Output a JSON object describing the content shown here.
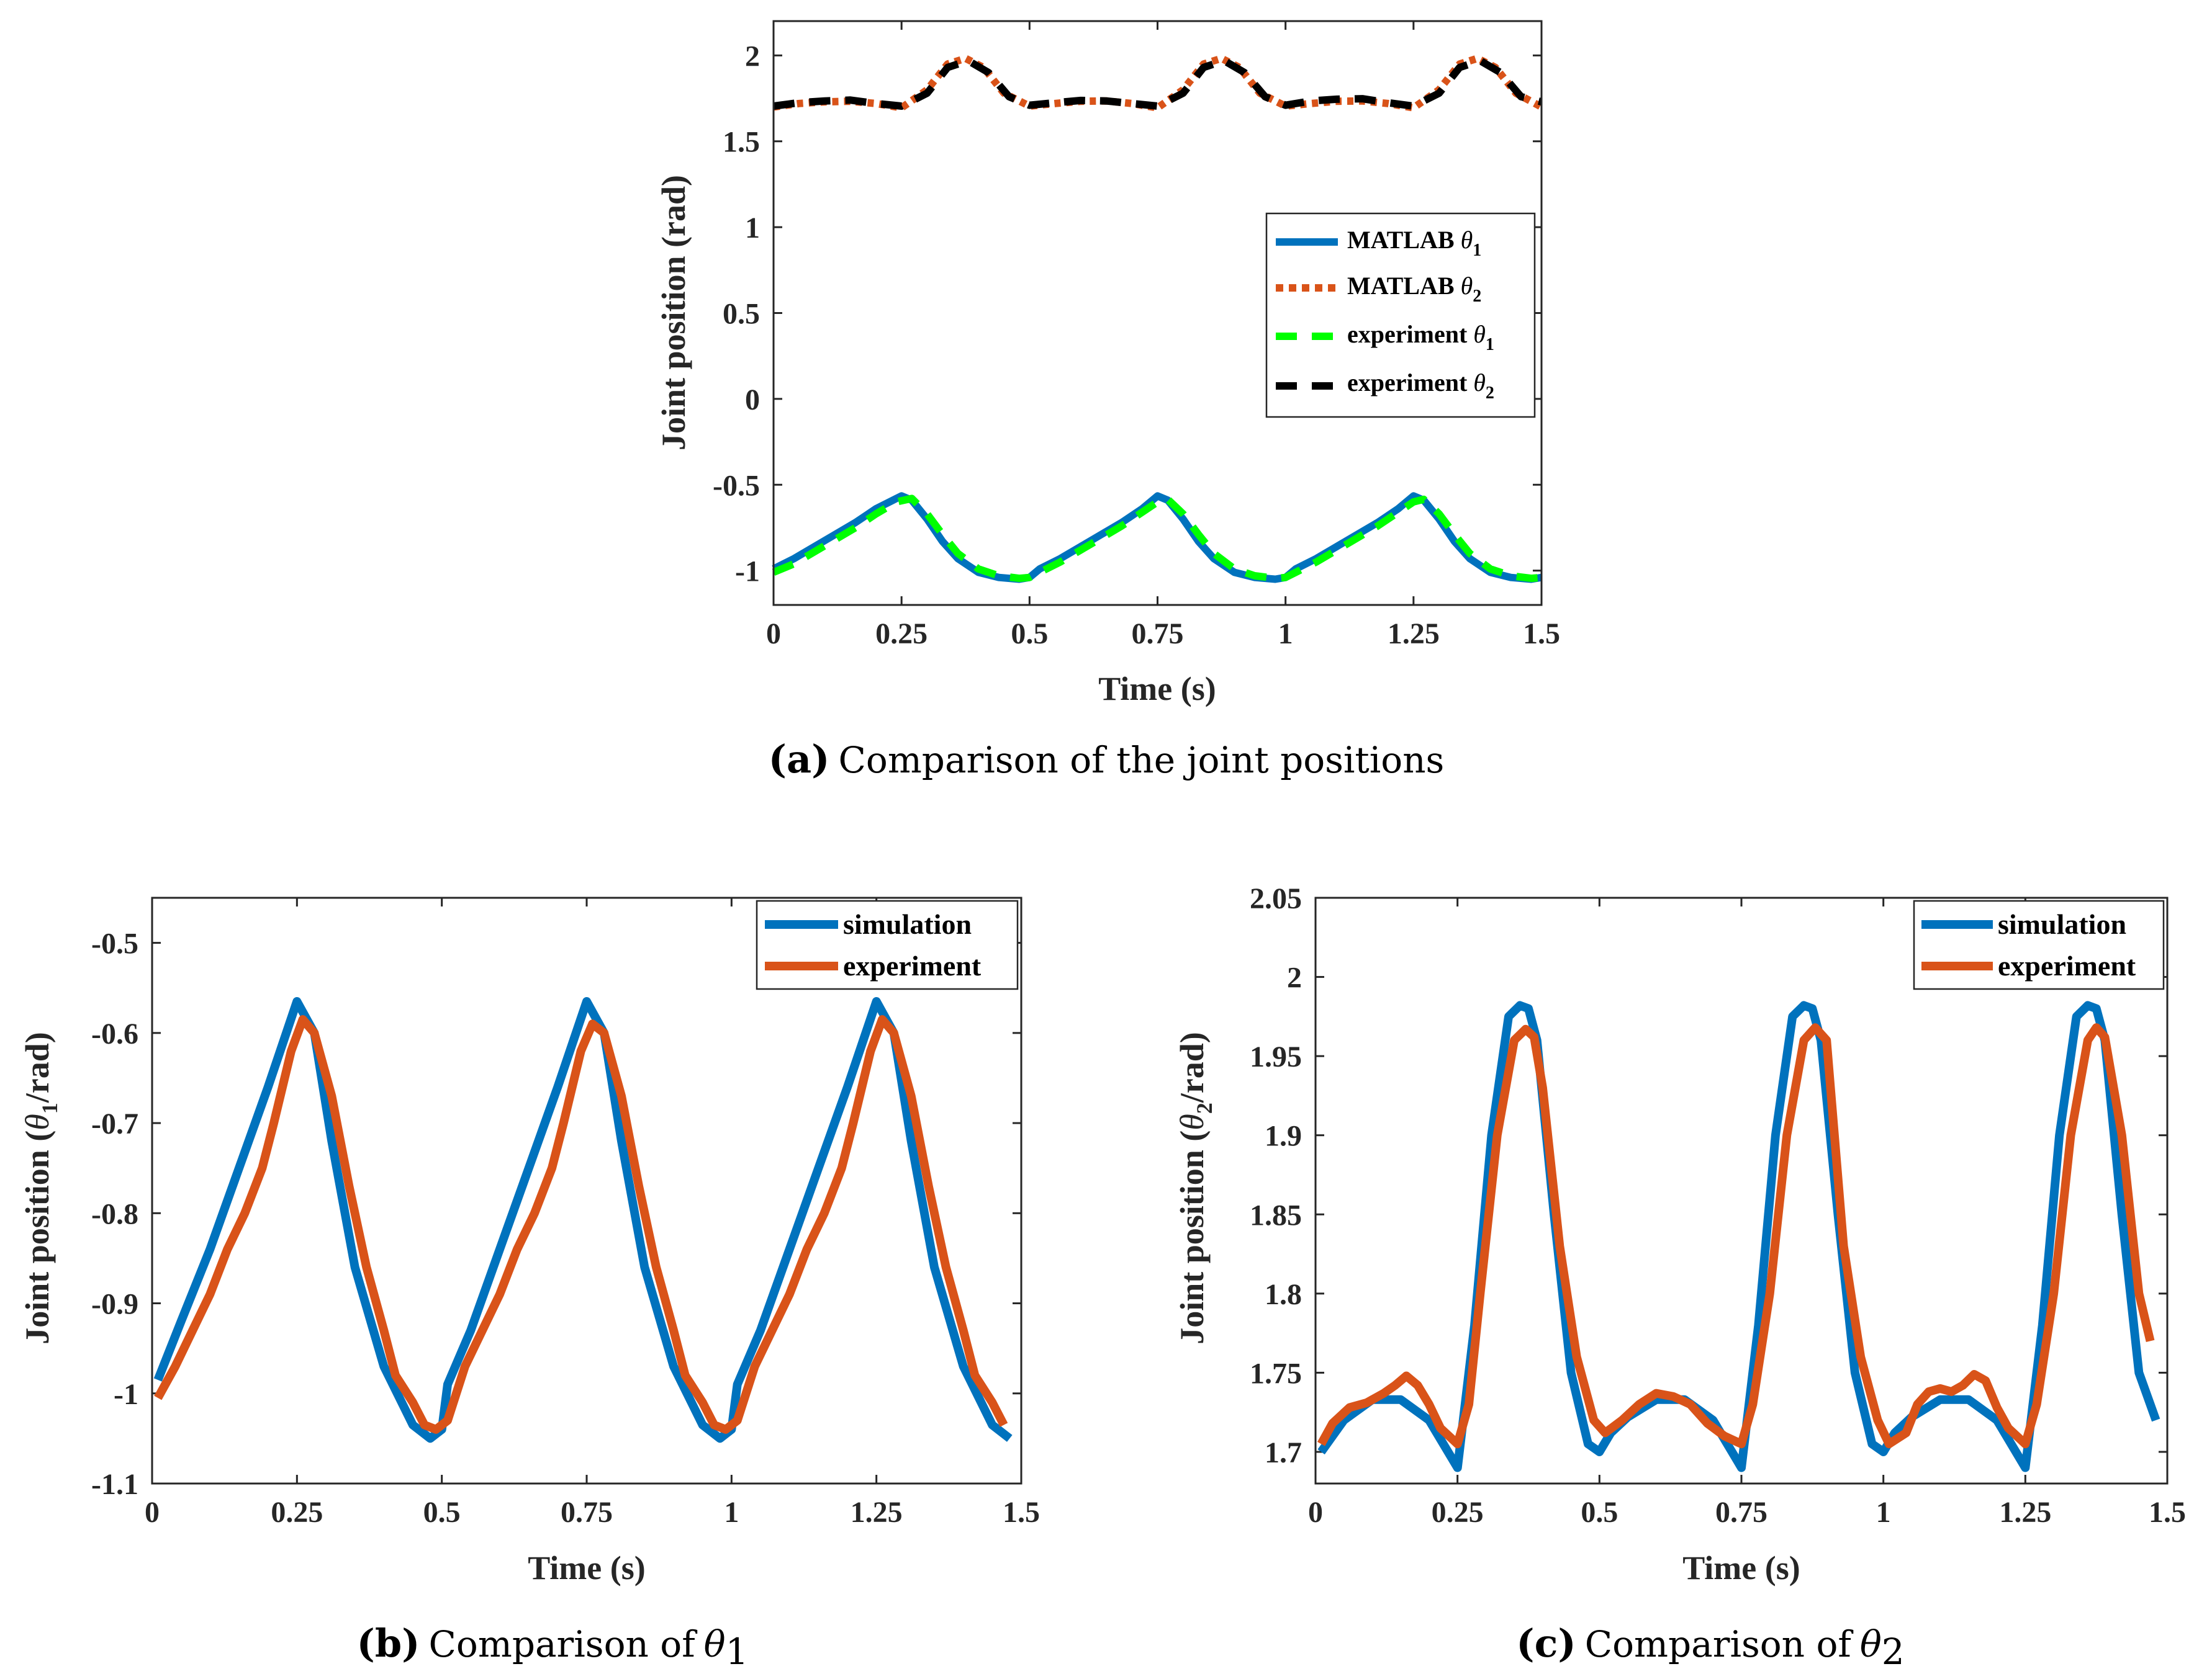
{
  "chart_data": [
    {
      "id": "a",
      "type": "line",
      "xlabel": "Time (s)",
      "ylabel": "Joint position (rad)",
      "xlim": [
        0,
        1.5
      ],
      "ylim": [
        -1.2,
        2.2
      ],
      "xticks": [
        "0",
        "0.25",
        "0.5",
        "0.75",
        "1",
        "1.25",
        "1.5"
      ],
      "yticks": [
        "-1",
        "-0.5",
        "0",
        "0.5",
        "1",
        "1.5",
        "2"
      ],
      "caption_tag": "(a)",
      "caption_text": "Comparison of the joint positions",
      "legend_position": "right-middle",
      "series": [
        {
          "name": "MATLAB",
          "symbol": "θ",
          "sub": "1",
          "style": "solid",
          "color": "#0072BD",
          "x": [
            0.0,
            0.04,
            0.08,
            0.12,
            0.16,
            0.2,
            0.24,
            0.25,
            0.27,
            0.3,
            0.33,
            0.36,
            0.4,
            0.44,
            0.48,
            0.5,
            0.52,
            0.56,
            0.6,
            0.64,
            0.68,
            0.72,
            0.75,
            0.77,
            0.8,
            0.83,
            0.86,
            0.9,
            0.94,
            0.98,
            1.0,
            1.02,
            1.06,
            1.1,
            1.14,
            1.18,
            1.22,
            1.25,
            1.27,
            1.3,
            1.33,
            1.36,
            1.4,
            1.44,
            1.48,
            1.5
          ],
          "y": [
            -0.99,
            -0.93,
            -0.86,
            -0.79,
            -0.72,
            -0.64,
            -0.58,
            -0.565,
            -0.59,
            -0.7,
            -0.83,
            -0.93,
            -1.01,
            -1.04,
            -1.05,
            -1.04,
            -0.99,
            -0.93,
            -0.86,
            -0.79,
            -0.72,
            -0.64,
            -0.565,
            -0.59,
            -0.7,
            -0.83,
            -0.93,
            -1.01,
            -1.04,
            -1.05,
            -1.04,
            -0.99,
            -0.93,
            -0.86,
            -0.79,
            -0.72,
            -0.64,
            -0.565,
            -0.59,
            -0.7,
            -0.83,
            -0.93,
            -1.01,
            -1.04,
            -1.05,
            -1.04
          ]
        },
        {
          "name": "MATLAB",
          "symbol": "θ",
          "sub": "2",
          "style": "dotted",
          "color": "#D95319",
          "x": [
            0.0,
            0.05,
            0.1,
            0.15,
            0.2,
            0.25,
            0.3,
            0.34,
            0.375,
            0.41,
            0.45,
            0.5,
            0.55,
            0.6,
            0.65,
            0.7,
            0.75,
            0.8,
            0.84,
            0.875,
            0.91,
            0.95,
            1.0,
            1.05,
            1.1,
            1.15,
            1.2,
            1.25,
            1.3,
            1.34,
            1.375,
            1.41,
            1.45,
            1.5
          ],
          "y": [
            1.7,
            1.72,
            1.73,
            1.733,
            1.72,
            1.695,
            1.8,
            1.95,
            1.983,
            1.93,
            1.78,
            1.705,
            1.72,
            1.733,
            1.735,
            1.72,
            1.695,
            1.8,
            1.95,
            1.983,
            1.93,
            1.78,
            1.705,
            1.72,
            1.733,
            1.735,
            1.72,
            1.695,
            1.8,
            1.95,
            1.983,
            1.93,
            1.78,
            1.7
          ]
        },
        {
          "name": "experiment",
          "symbol": "θ",
          "sub": "1",
          "style": "dashed",
          "color": "#00FF00",
          "x": [
            0.0,
            0.04,
            0.08,
            0.12,
            0.16,
            0.2,
            0.24,
            0.27,
            0.3,
            0.33,
            0.36,
            0.4,
            0.44,
            0.48,
            0.5,
            0.52,
            0.56,
            0.6,
            0.64,
            0.68,
            0.72,
            0.75,
            0.77,
            0.8,
            0.83,
            0.86,
            0.9,
            0.94,
            0.98,
            1.0,
            1.02,
            1.06,
            1.1,
            1.14,
            1.18,
            1.22,
            1.25,
            1.27,
            1.3,
            1.33,
            1.36,
            1.4,
            1.44,
            1.48,
            1.5
          ],
          "y": [
            -1.01,
            -0.96,
            -0.89,
            -0.82,
            -0.75,
            -0.67,
            -0.6,
            -0.58,
            -0.67,
            -0.79,
            -0.9,
            -0.99,
            -1.03,
            -1.045,
            -1.04,
            -1.01,
            -0.95,
            -0.88,
            -0.81,
            -0.74,
            -0.66,
            -0.6,
            -0.585,
            -0.67,
            -0.79,
            -0.9,
            -0.99,
            -1.03,
            -1.045,
            -1.04,
            -1.01,
            -0.95,
            -0.88,
            -0.81,
            -0.74,
            -0.66,
            -0.6,
            -0.585,
            -0.67,
            -0.79,
            -0.9,
            -0.99,
            -1.03,
            -1.045,
            -1.04
          ]
        },
        {
          "name": "experiment",
          "symbol": "θ",
          "sub": "2",
          "style": "dashed",
          "color": "#000000",
          "x": [
            0.0,
            0.05,
            0.1,
            0.15,
            0.2,
            0.25,
            0.3,
            0.34,
            0.38,
            0.42,
            0.46,
            0.5,
            0.55,
            0.6,
            0.65,
            0.7,
            0.75,
            0.8,
            0.84,
            0.88,
            0.92,
            0.96,
            1.0,
            1.05,
            1.1,
            1.15,
            1.2,
            1.25,
            1.3,
            1.34,
            1.38,
            1.42,
            1.46,
            1.5
          ],
          "y": [
            1.705,
            1.725,
            1.735,
            1.74,
            1.72,
            1.705,
            1.78,
            1.93,
            1.97,
            1.9,
            1.76,
            1.71,
            1.725,
            1.738,
            1.735,
            1.72,
            1.705,
            1.78,
            1.93,
            1.97,
            1.9,
            1.76,
            1.71,
            1.735,
            1.745,
            1.748,
            1.725,
            1.705,
            1.78,
            1.93,
            1.97,
            1.9,
            1.76,
            1.73
          ]
        }
      ]
    },
    {
      "id": "b",
      "type": "line",
      "xlabel": "Time (s)",
      "ylabel_pre": "Joint position (",
      "ylabel_sym": "θ",
      "ylabel_sub": "1",
      "ylabel_post": "/rad)",
      "xlim": [
        0,
        1.5
      ],
      "ylim": [
        -1.1,
        -0.45
      ],
      "xticks": [
        "0",
        "0.25",
        "0.5",
        "0.75",
        "1",
        "1.25",
        "1.5"
      ],
      "yticks": [
        "-1.1",
        "-1",
        "-0.9",
        "-0.8",
        "-0.7",
        "-0.6",
        "-0.5"
      ],
      "caption_tag": "(b)",
      "caption_text": "Comparison of",
      "caption_sym": "θ",
      "caption_sub": "1",
      "legend_position": "top-right",
      "series": [
        {
          "name": "simulation",
          "color": "#0072BD",
          "x": [
            0.01,
            0.05,
            0.1,
            0.15,
            0.2,
            0.25,
            0.28,
            0.31,
            0.35,
            0.4,
            0.45,
            0.48,
            0.5,
            0.51,
            0.55,
            0.6,
            0.65,
            0.7,
            0.75,
            0.78,
            0.81,
            0.85,
            0.9,
            0.95,
            0.98,
            1.0,
            1.01,
            1.05,
            1.1,
            1.15,
            1.2,
            1.25,
            1.28,
            1.31,
            1.35,
            1.4,
            1.45,
            1.48
          ],
          "y": [
            -0.985,
            -0.92,
            -0.84,
            -0.75,
            -0.66,
            -0.565,
            -0.6,
            -0.72,
            -0.86,
            -0.97,
            -1.035,
            -1.05,
            -1.04,
            -0.99,
            -0.93,
            -0.84,
            -0.75,
            -0.66,
            -0.565,
            -0.6,
            -0.72,
            -0.86,
            -0.97,
            -1.035,
            -1.05,
            -1.04,
            -0.99,
            -0.93,
            -0.84,
            -0.75,
            -0.66,
            -0.565,
            -0.6,
            -0.72,
            -0.86,
            -0.97,
            -1.035,
            -1.05
          ]
        },
        {
          "name": "experiment",
          "color": "#D95319",
          "x": [
            0.01,
            0.04,
            0.07,
            0.1,
            0.13,
            0.16,
            0.19,
            0.21,
            0.24,
            0.26,
            0.28,
            0.31,
            0.34,
            0.37,
            0.4,
            0.42,
            0.45,
            0.47,
            0.49,
            0.51,
            0.54,
            0.57,
            0.6,
            0.63,
            0.66,
            0.69,
            0.71,
            0.74,
            0.76,
            0.78,
            0.81,
            0.84,
            0.87,
            0.9,
            0.92,
            0.95,
            0.97,
            0.99,
            1.01,
            1.04,
            1.07,
            1.1,
            1.13,
            1.16,
            1.19,
            1.21,
            1.24,
            1.26,
            1.28,
            1.31,
            1.34,
            1.37,
            1.4,
            1.42,
            1.45,
            1.47
          ],
          "y": [
            -1.005,
            -0.97,
            -0.93,
            -0.89,
            -0.84,
            -0.8,
            -0.75,
            -0.7,
            -0.62,
            -0.585,
            -0.6,
            -0.67,
            -0.77,
            -0.86,
            -0.93,
            -0.98,
            -1.01,
            -1.035,
            -1.04,
            -1.03,
            -0.97,
            -0.93,
            -0.89,
            -0.84,
            -0.8,
            -0.75,
            -0.7,
            -0.62,
            -0.59,
            -0.6,
            -0.67,
            -0.77,
            -0.86,
            -0.93,
            -0.98,
            -1.01,
            -1.035,
            -1.04,
            -1.03,
            -0.97,
            -0.93,
            -0.89,
            -0.84,
            -0.8,
            -0.75,
            -0.7,
            -0.62,
            -0.585,
            -0.6,
            -0.67,
            -0.77,
            -0.86,
            -0.93,
            -0.98,
            -1.01,
            -1.035
          ]
        }
      ]
    },
    {
      "id": "c",
      "type": "line",
      "xlabel": "Time (s)",
      "ylabel_pre": "Joint position (",
      "ylabel_sym": "θ",
      "ylabel_sub": "2",
      "ylabel_post": "/rad)",
      "xlim": [
        0,
        1.5
      ],
      "ylim": [
        1.68,
        2.05
      ],
      "xticks": [
        "0",
        "0.25",
        "0.5",
        "0.75",
        "1",
        "1.25",
        "1.5"
      ],
      "yticks": [
        "1.7",
        "1.75",
        "1.8",
        "1.85",
        "1.9",
        "1.95",
        "2",
        "2.05"
      ],
      "caption_tag": "(c)",
      "caption_text": "Comparison of",
      "caption_sym": "θ",
      "caption_sub": "2",
      "legend_position": "top-right",
      "series": [
        {
          "name": "simulation",
          "color": "#0072BD",
          "x": [
            0.01,
            0.05,
            0.1,
            0.15,
            0.2,
            0.25,
            0.28,
            0.31,
            0.34,
            0.36,
            0.375,
            0.39,
            0.42,
            0.45,
            0.48,
            0.5,
            0.52,
            0.55,
            0.6,
            0.65,
            0.7,
            0.75,
            0.78,
            0.81,
            0.84,
            0.86,
            0.875,
            0.89,
            0.92,
            0.95,
            0.98,
            1.0,
            1.02,
            1.05,
            1.1,
            1.15,
            1.2,
            1.25,
            1.28,
            1.31,
            1.34,
            1.36,
            1.375,
            1.39,
            1.42,
            1.45,
            1.48
          ],
          "y": [
            1.7,
            1.72,
            1.733,
            1.733,
            1.72,
            1.69,
            1.78,
            1.9,
            1.975,
            1.982,
            1.98,
            1.96,
            1.85,
            1.75,
            1.705,
            1.7,
            1.712,
            1.722,
            1.733,
            1.733,
            1.72,
            1.69,
            1.78,
            1.9,
            1.975,
            1.982,
            1.98,
            1.96,
            1.85,
            1.75,
            1.705,
            1.7,
            1.712,
            1.722,
            1.733,
            1.733,
            1.72,
            1.69,
            1.78,
            1.9,
            1.975,
            1.982,
            1.98,
            1.96,
            1.85,
            1.75,
            1.72
          ]
        },
        {
          "name": "experiment",
          "color": "#D95319",
          "x": [
            0.01,
            0.03,
            0.06,
            0.09,
            0.12,
            0.14,
            0.16,
            0.18,
            0.2,
            0.22,
            0.25,
            0.27,
            0.29,
            0.32,
            0.35,
            0.37,
            0.385,
            0.4,
            0.43,
            0.46,
            0.49,
            0.51,
            0.54,
            0.57,
            0.6,
            0.63,
            0.66,
            0.69,
            0.72,
            0.75,
            0.77,
            0.8,
            0.83,
            0.86,
            0.88,
            0.9,
            0.93,
            0.96,
            0.99,
            1.01,
            1.04,
            1.06,
            1.08,
            1.1,
            1.12,
            1.14,
            1.16,
            1.18,
            1.2,
            1.22,
            1.25,
            1.27,
            1.3,
            1.33,
            1.36,
            1.375,
            1.39,
            1.42,
            1.45,
            1.47
          ],
          "y": [
            1.705,
            1.718,
            1.728,
            1.731,
            1.737,
            1.742,
            1.748,
            1.742,
            1.73,
            1.715,
            1.705,
            1.73,
            1.8,
            1.9,
            1.96,
            1.967,
            1.962,
            1.93,
            1.83,
            1.76,
            1.72,
            1.712,
            1.72,
            1.73,
            1.737,
            1.735,
            1.73,
            1.718,
            1.71,
            1.705,
            1.73,
            1.8,
            1.9,
            1.96,
            1.968,
            1.96,
            1.83,
            1.76,
            1.72,
            1.705,
            1.712,
            1.73,
            1.738,
            1.74,
            1.738,
            1.742,
            1.749,
            1.745,
            1.728,
            1.715,
            1.705,
            1.73,
            1.8,
            1.9,
            1.96,
            1.968,
            1.962,
            1.9,
            1.8,
            1.77
          ]
        }
      ]
    }
  ]
}
